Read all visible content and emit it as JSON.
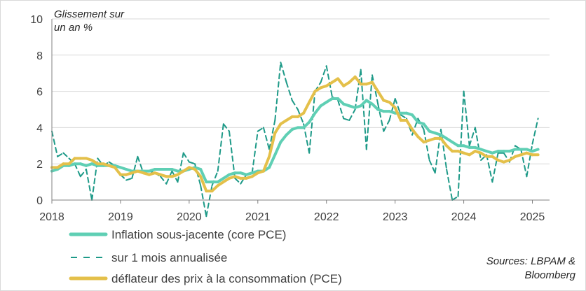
{
  "chart_data": {
    "type": "line",
    "ylabel_lines": [
      "Glissement sur",
      "un an %"
    ],
    "ylim": [
      0,
      10
    ],
    "yticks": [
      0,
      2,
      4,
      6,
      8,
      10
    ],
    "xlim": [
      2018.0,
      2025.25
    ],
    "xticks": [
      "2018",
      "2019",
      "2020",
      "2021",
      "2022",
      "2023",
      "2024",
      "2025"
    ],
    "xtick_values": [
      2018,
      2019,
      2020,
      2021,
      2022,
      2023,
      2024,
      2025
    ],
    "grid": "horizontal",
    "legend_position": "bottom-left",
    "source_lines": [
      "Sources: LBPAM &",
      "Bloomberg"
    ],
    "series": [
      {
        "name": "Inflation sous-jacente (core PCE)",
        "color": "#5fcfb4",
        "style": "solid",
        "x": [
          2018.0,
          2018.083,
          2018.167,
          2018.25,
          2018.333,
          2018.417,
          2018.5,
          2018.583,
          2018.667,
          2018.75,
          2018.833,
          2018.917,
          2019.0,
          2019.083,
          2019.167,
          2019.25,
          2019.333,
          2019.417,
          2019.5,
          2019.583,
          2019.667,
          2019.75,
          2019.833,
          2019.917,
          2020.0,
          2020.083,
          2020.167,
          2020.25,
          2020.333,
          2020.417,
          2020.5,
          2020.583,
          2020.667,
          2020.75,
          2020.833,
          2020.917,
          2021.0,
          2021.083,
          2021.167,
          2021.25,
          2021.333,
          2021.417,
          2021.5,
          2021.583,
          2021.667,
          2021.75,
          2021.833,
          2021.917,
          2022.0,
          2022.083,
          2022.167,
          2022.25,
          2022.333,
          2022.417,
          2022.5,
          2022.583,
          2022.667,
          2022.75,
          2022.833,
          2022.917,
          2023.0,
          2023.083,
          2023.167,
          2023.25,
          2023.333,
          2023.417,
          2023.5,
          2023.583,
          2023.667,
          2023.75,
          2023.833,
          2023.917,
          2024.0,
          2024.083,
          2024.167,
          2024.25,
          2024.333,
          2024.417,
          2024.5,
          2024.583,
          2024.667,
          2024.75,
          2024.833,
          2024.917,
          2025.0,
          2025.083
        ],
        "values": [
          1.6,
          1.7,
          1.9,
          1.9,
          2.0,
          2.0,
          1.9,
          2.0,
          1.9,
          1.9,
          1.9,
          1.9,
          1.8,
          1.7,
          1.6,
          1.6,
          1.6,
          1.6,
          1.7,
          1.7,
          1.7,
          1.7,
          1.6,
          1.6,
          1.7,
          1.8,
          1.7,
          1.0,
          1.0,
          1.0,
          1.2,
          1.4,
          1.5,
          1.5,
          1.4,
          1.5,
          1.6,
          1.6,
          1.8,
          2.5,
          3.2,
          3.6,
          3.9,
          4.0,
          4.0,
          4.3,
          4.8,
          5.2,
          5.4,
          5.6,
          5.6,
          5.3,
          5.2,
          5.1,
          5.2,
          5.5,
          5.3,
          5.0,
          4.9,
          4.9,
          4.8,
          4.8,
          4.8,
          4.7,
          4.3,
          4.2,
          3.8,
          3.7,
          3.6,
          3.4,
          3.2,
          3.0,
          3.0,
          2.9,
          2.9,
          2.8,
          2.7,
          2.6,
          2.7,
          2.7,
          2.7,
          2.8,
          2.8,
          2.8,
          2.7,
          2.8
        ]
      },
      {
        "name": "sur 1 mois annualisée",
        "color": "#1e9a88",
        "style": "dashed",
        "x": [
          2018.0,
          2018.083,
          2018.167,
          2018.25,
          2018.333,
          2018.417,
          2018.5,
          2018.583,
          2018.667,
          2018.75,
          2018.833,
          2018.917,
          2019.0,
          2019.083,
          2019.167,
          2019.25,
          2019.333,
          2019.417,
          2019.5,
          2019.583,
          2019.667,
          2019.75,
          2019.833,
          2019.917,
          2020.0,
          2020.083,
          2020.167,
          2020.25,
          2020.333,
          2020.417,
          2020.5,
          2020.583,
          2020.667,
          2020.75,
          2020.833,
          2020.917,
          2021.0,
          2021.083,
          2021.167,
          2021.25,
          2021.333,
          2021.417,
          2021.5,
          2021.583,
          2021.667,
          2021.75,
          2021.833,
          2021.917,
          2022.0,
          2022.083,
          2022.167,
          2022.25,
          2022.333,
          2022.417,
          2022.5,
          2022.583,
          2022.667,
          2022.75,
          2022.833,
          2022.917,
          2023.0,
          2023.083,
          2023.167,
          2023.25,
          2023.333,
          2023.417,
          2023.5,
          2023.583,
          2023.667,
          2023.75,
          2023.833,
          2023.917,
          2024.0,
          2024.083,
          2024.167,
          2024.25,
          2024.333,
          2024.417,
          2024.5,
          2024.583,
          2024.667,
          2024.75,
          2024.833,
          2024.917,
          2025.0,
          2025.083
        ],
        "values": [
          3.8,
          2.4,
          2.6,
          2.3,
          2.0,
          1.3,
          1.7,
          0.0,
          2.3,
          1.9,
          2.1,
          1.9,
          1.4,
          1.1,
          1.2,
          2.4,
          1.5,
          1.6,
          1.5,
          1.3,
          0.9,
          1.6,
          1.0,
          2.6,
          2.1,
          2.0,
          0.8,
          -0.9,
          0.8,
          1.6,
          4.2,
          3.8,
          1.2,
          0.9,
          1.4,
          1.5,
          3.8,
          4.0,
          2.8,
          4.4,
          7.6,
          6.5,
          5.5,
          5.0,
          4.2,
          2.6,
          6.0,
          6.5,
          7.4,
          5.7,
          5.5,
          4.5,
          4.4,
          5.0,
          7.2,
          2.8,
          6.9,
          5.3,
          3.8,
          4.4,
          5.6,
          4.7,
          4.5,
          3.6,
          4.5,
          3.9,
          2.2,
          1.5,
          3.9,
          1.7,
          0.0,
          0.2,
          6.0,
          3.0,
          4.0,
          2.2,
          2.5,
          1.0,
          2.6,
          2.6,
          2.1,
          3.0,
          2.8,
          1.3,
          3.1,
          4.5
        ]
      },
      {
        "name": "déflateur des prix à la consommation (PCE)",
        "color": "#e4c04a",
        "style": "solid",
        "x": [
          2018.0,
          2018.083,
          2018.167,
          2018.25,
          2018.333,
          2018.417,
          2018.5,
          2018.583,
          2018.667,
          2018.75,
          2018.833,
          2018.917,
          2019.0,
          2019.083,
          2019.167,
          2019.25,
          2019.333,
          2019.417,
          2019.5,
          2019.583,
          2019.667,
          2019.75,
          2019.833,
          2019.917,
          2020.0,
          2020.083,
          2020.167,
          2020.25,
          2020.333,
          2020.417,
          2020.5,
          2020.583,
          2020.667,
          2020.75,
          2020.833,
          2020.917,
          2021.0,
          2021.083,
          2021.167,
          2021.25,
          2021.333,
          2021.417,
          2021.5,
          2021.583,
          2021.667,
          2021.75,
          2021.833,
          2021.917,
          2022.0,
          2022.083,
          2022.167,
          2022.25,
          2022.333,
          2022.417,
          2022.5,
          2022.583,
          2022.667,
          2022.75,
          2022.833,
          2022.917,
          2023.0,
          2023.083,
          2023.167,
          2023.25,
          2023.333,
          2023.417,
          2023.5,
          2023.583,
          2023.667,
          2023.75,
          2023.833,
          2023.917,
          2024.0,
          2024.083,
          2024.167,
          2024.25,
          2024.333,
          2024.417,
          2024.5,
          2024.583,
          2024.667,
          2024.75,
          2024.833,
          2024.917,
          2025.0,
          2025.083
        ],
        "values": [
          1.8,
          1.8,
          2.0,
          2.0,
          2.3,
          2.3,
          2.3,
          2.2,
          2.0,
          2.0,
          1.9,
          1.8,
          1.4,
          1.4,
          1.5,
          1.6,
          1.5,
          1.4,
          1.5,
          1.4,
          1.3,
          1.3,
          1.4,
          1.6,
          1.8,
          1.7,
          1.3,
          0.5,
          0.5,
          0.8,
          1.0,
          1.2,
          1.3,
          1.2,
          1.2,
          1.3,
          1.5,
          1.6,
          2.4,
          3.7,
          4.2,
          4.4,
          4.6,
          4.6,
          4.8,
          5.4,
          6.0,
          6.2,
          6.3,
          6.5,
          6.7,
          6.3,
          6.5,
          6.8,
          6.4,
          6.4,
          6.5,
          6.0,
          5.5,
          5.4,
          5.1,
          4.4,
          4.4,
          3.9,
          3.5,
          3.2,
          3.3,
          3.4,
          3.4,
          3.0,
          2.7,
          2.7,
          2.6,
          2.5,
          2.7,
          2.6,
          2.4,
          2.4,
          2.2,
          2.1,
          2.2,
          2.4,
          2.5,
          2.6,
          2.5,
          2.5
        ]
      }
    ]
  }
}
